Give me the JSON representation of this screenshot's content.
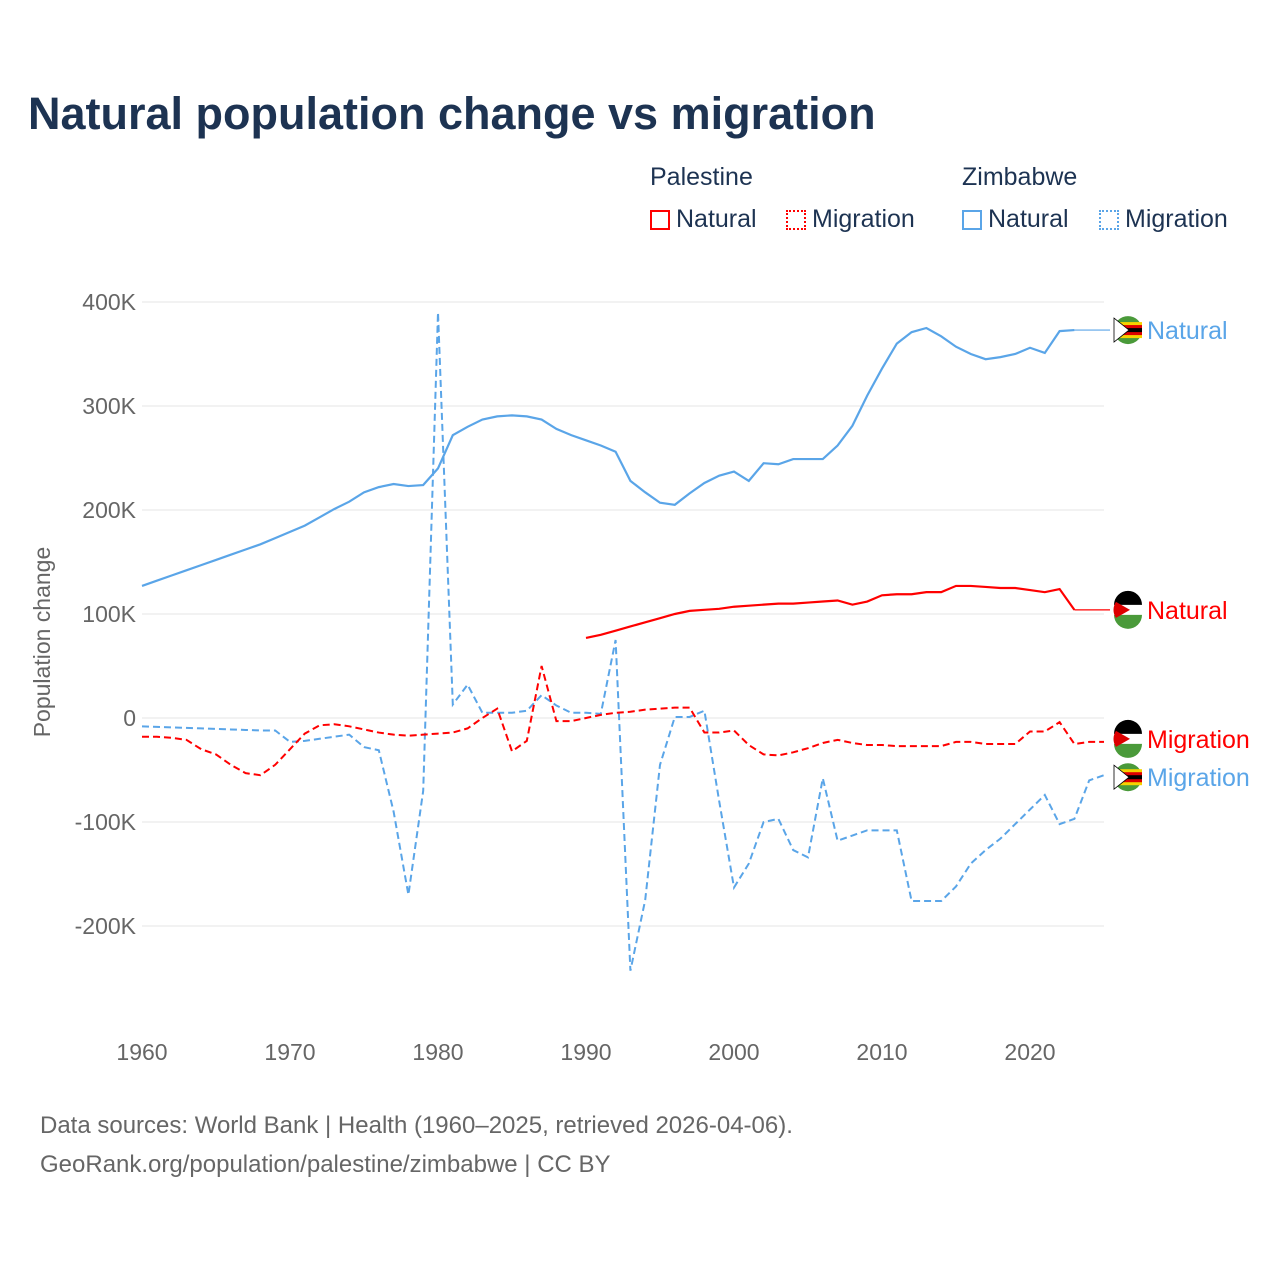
{
  "title": "Natural population change vs migration",
  "legend": {
    "groups": [
      {
        "name": "Palestine",
        "items": [
          "Natural",
          "Migration"
        ]
      },
      {
        "name": "Zimbabwe",
        "items": [
          "Natural",
          "Migration"
        ]
      }
    ]
  },
  "footer": {
    "line1": "Data sources: World Bank | Health (1960–2025, retrieved 2026-04-06).",
    "line2": "GeoRank.org/population/palestine/zimbabwe | CC BY"
  },
  "colors": {
    "palestine": "#ff0000",
    "zimbabwe": "#5aa5e8"
  },
  "chart_data": {
    "type": "line",
    "title": "Natural population change vs migration",
    "xlabel": "",
    "ylabel": "Population change",
    "xlim": [
      1960,
      2025
    ],
    "ylim": [
      -280000,
      400000
    ],
    "xticks": [
      1960,
      1970,
      1980,
      1990,
      2000,
      2010,
      2020
    ],
    "yticks": [
      {
        "v": 400000,
        "l": "400K"
      },
      {
        "v": 300000,
        "l": "300K"
      },
      {
        "v": 200000,
        "l": "200K"
      },
      {
        "v": 100000,
        "l": "100K"
      },
      {
        "v": 0,
        "l": "0"
      },
      {
        "v": -100000,
        "l": "-100K"
      },
      {
        "v": -200000,
        "l": "-200K"
      }
    ],
    "series": [
      {
        "name": "Zimbabwe Natural",
        "label": "Natural",
        "country": "zimbabwe",
        "dashed": false,
        "start": 1960,
        "values_k": [
          127,
          132,
          137,
          142,
          147,
          152,
          157,
          162,
          167,
          173,
          179,
          185,
          193,
          201,
          208,
          217,
          222,
          225,
          223,
          224,
          240,
          272,
          280,
          287,
          290,
          291,
          290,
          287,
          278,
          272,
          267,
          262,
          256,
          228,
          217,
          207,
          205,
          216,
          226,
          233,
          237,
          228,
          245,
          244,
          249,
          249,
          249,
          262,
          281,
          310,
          336,
          360,
          371,
          375,
          367,
          357,
          350,
          345,
          347,
          350,
          356,
          351,
          372,
          373
        ]
      },
      {
        "name": "Zimbabwe Migration",
        "label": "Migration",
        "country": "zimbabwe",
        "dashed": true,
        "start": 1960,
        "values_k": [
          -8,
          -8.5,
          -9,
          -9.5,
          -10,
          -10.5,
          -11,
          -11.5,
          -12,
          -12,
          -23,
          -22,
          -20,
          -18,
          -16,
          -28,
          -31,
          -90,
          -170,
          -70,
          390,
          13,
          32,
          5,
          5,
          5,
          7,
          22,
          12,
          5,
          5,
          4,
          75,
          -243,
          -175,
          -45,
          1,
          1,
          7,
          -80,
          -163,
          -140,
          -100,
          -97,
          -127,
          -134,
          -58,
          -118,
          -113,
          -108,
          -108,
          -108,
          -176,
          -176,
          -176,
          -162,
          -140,
          -127,
          -116,
          -102,
          -88,
          -74,
          -102,
          -97,
          -60,
          -55
        ]
      },
      {
        "name": "Palestine Natural",
        "label": "Natural",
        "country": "palestine",
        "dashed": false,
        "start": 1990,
        "values_k": [
          77,
          80,
          84,
          88,
          92,
          96,
          100,
          103,
          104,
          105,
          107,
          108,
          109,
          110,
          110,
          111,
          112,
          113,
          109,
          112,
          118,
          119,
          119,
          121,
          121,
          127,
          127,
          126,
          125,
          125,
          123,
          121,
          124,
          104
        ]
      },
      {
        "name": "Palestine Migration",
        "label": "Migration",
        "country": "palestine",
        "dashed": true,
        "start": 1960,
        "values_k": [
          -18,
          -18,
          -19,
          -21,
          -30,
          -35,
          -45,
          -53,
          -55,
          -45,
          -30,
          -15,
          -7,
          -6,
          -8,
          -11,
          -14,
          -16,
          -17,
          -16,
          -15,
          -14,
          -10,
          0,
          9,
          -32,
          -22,
          50,
          -3,
          -3,
          0,
          3,
          5,
          6,
          8,
          9,
          10,
          10,
          -14,
          -14,
          -12,
          -26,
          -35,
          -36,
          -33,
          -29,
          -24,
          -21,
          -24,
          -26,
          -26,
          -27,
          -27,
          -27,
          -27,
          -23,
          -23,
          -25,
          -25,
          -25,
          -13,
          -13,
          -4,
          -25,
          -23,
          -23
        ]
      }
    ],
    "end_labels": [
      {
        "text": "Natural",
        "series": 0,
        "value_k": 373
      },
      {
        "text": "Natural",
        "series": 2,
        "value_k": 104
      },
      {
        "text": "Migration",
        "series": 3,
        "value_k": -23
      },
      {
        "text": "Migration",
        "series": 1,
        "value_k": -55
      }
    ]
  }
}
